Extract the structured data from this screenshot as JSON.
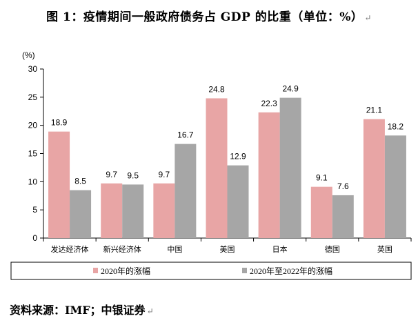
{
  "title": "图 1：疫情期间一般政府债务占 GDP 的比重（单位：%）",
  "source": "资料来源：IMF；中银证券",
  "colors": {
    "series1": "#e8a5a5",
    "series2": "#a6a6a6",
    "axis": "#000000",
    "text": "#000000"
  },
  "chart_data": {
    "type": "bar",
    "title": "疫情期间一般政府债务占 GDP 的比重（单位：%）",
    "ylabel": "(%)",
    "xlabel": "",
    "ylim": [
      0,
      30
    ],
    "yticks": [
      0,
      5,
      10,
      15,
      20,
      25,
      30
    ],
    "grid": false,
    "legend_position": "bottom",
    "categories": [
      "发达经济体",
      "新兴经济体",
      "中国",
      "美国",
      "日本",
      "德国",
      "英国"
    ],
    "series": [
      {
        "name": "2020年的涨幅",
        "values": [
          18.9,
          9.7,
          9.7,
          24.8,
          22.3,
          9.1,
          21.1
        ]
      },
      {
        "name": "2020年至2022年的涨幅",
        "values": [
          8.5,
          9.5,
          16.7,
          12.9,
          24.9,
          7.6,
          18.2
        ]
      }
    ]
  }
}
